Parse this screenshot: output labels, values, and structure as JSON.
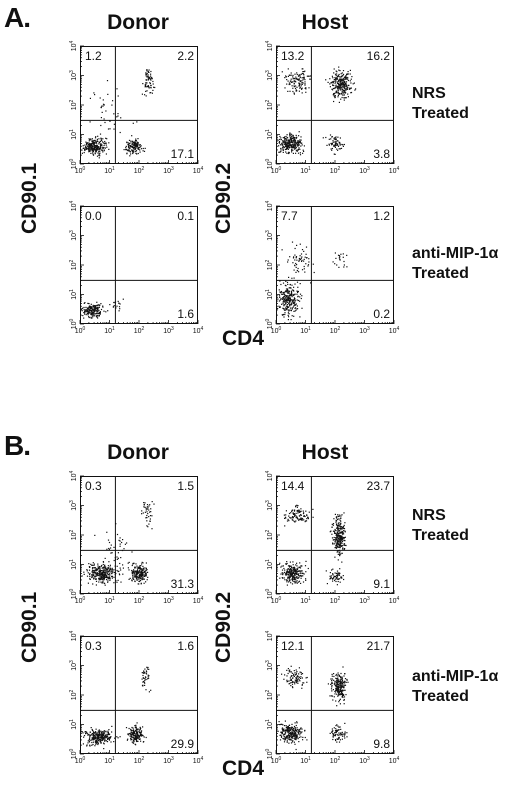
{
  "panels": [
    {
      "label": "A.",
      "col_headers": [
        "Donor",
        "Host"
      ],
      "row_labels": [
        {
          "line1": "NRS",
          "line2": "Treated"
        },
        {
          "line1": "anti-MIP-1α",
          "line2": "Treated"
        }
      ],
      "y_labels": [
        "CD90.1",
        "CD90.2"
      ],
      "x_label": "CD4"
    },
    {
      "label": "B.",
      "col_headers": [
        "Donor",
        "Host"
      ],
      "row_labels": [
        {
          "line1": "NRS",
          "line2": "Treated"
        },
        {
          "line1": "anti-MIP-1α",
          "line2": "Treated"
        }
      ],
      "y_labels": [
        "CD90.1",
        "CD90.2"
      ],
      "x_label": "CD4"
    }
  ],
  "chart_data": [
    {
      "type": "scatter",
      "panel": "A",
      "population": "Donor",
      "treatment": "NRS Treated",
      "xlabel": "CD4",
      "ylabel": "CD90.1",
      "xscale": "log",
      "yscale": "log",
      "xlim": [
        1,
        10000
      ],
      "ylim": [
        1,
        10000
      ],
      "quadrants": {
        "upper_left": "1.2",
        "upper_right": "2.2",
        "lower_right": "17.1"
      }
    },
    {
      "type": "scatter",
      "panel": "A",
      "population": "Host",
      "treatment": "NRS Treated",
      "xlabel": "CD4",
      "ylabel": "CD90.2",
      "xscale": "log",
      "yscale": "log",
      "xlim": [
        1,
        10000
      ],
      "ylim": [
        1,
        10000
      ],
      "quadrants": {
        "upper_left": "13.2",
        "upper_right": "16.2",
        "lower_right": "3.8"
      }
    },
    {
      "type": "scatter",
      "panel": "A",
      "population": "Donor",
      "treatment": "anti-MIP-1α Treated",
      "xlabel": "CD4",
      "ylabel": "CD90.1",
      "xscale": "log",
      "yscale": "log",
      "xlim": [
        1,
        10000
      ],
      "ylim": [
        1,
        10000
      ],
      "quadrants": {
        "upper_left": "0.0",
        "upper_right": "0.1",
        "lower_right": "1.6"
      }
    },
    {
      "type": "scatter",
      "panel": "A",
      "population": "Host",
      "treatment": "anti-MIP-1α Treated",
      "xlabel": "CD4",
      "ylabel": "CD90.2",
      "xscale": "log",
      "yscale": "log",
      "xlim": [
        1,
        10000
      ],
      "ylim": [
        1,
        10000
      ],
      "quadrants": {
        "upper_left": "7.7",
        "upper_right": "1.2",
        "lower_right": "0.2"
      }
    },
    {
      "type": "scatter",
      "panel": "B",
      "population": "Donor",
      "treatment": "NRS Treated",
      "xlabel": "CD4",
      "ylabel": "CD90.1",
      "xscale": "log",
      "yscale": "log",
      "xlim": [
        1,
        10000
      ],
      "ylim": [
        1,
        10000
      ],
      "quadrants": {
        "upper_left": "0.3",
        "upper_right": "1.5",
        "lower_right": "31.3"
      }
    },
    {
      "type": "scatter",
      "panel": "B",
      "population": "Host",
      "treatment": "NRS Treated",
      "xlabel": "CD4",
      "ylabel": "CD90.2",
      "xscale": "log",
      "yscale": "log",
      "xlim": [
        1,
        10000
      ],
      "ylim": [
        1,
        10000
      ],
      "quadrants": {
        "upper_left": "14.4",
        "upper_right": "23.7",
        "lower_right": "9.1"
      }
    },
    {
      "type": "scatter",
      "panel": "B",
      "population": "Donor",
      "treatment": "anti-MIP-1α Treated",
      "xlabel": "CD4",
      "ylabel": "CD90.1",
      "xscale": "log",
      "yscale": "log",
      "xlim": [
        1,
        10000
      ],
      "ylim": [
        1,
        10000
      ],
      "quadrants": {
        "upper_left": "0.3",
        "upper_right": "1.6",
        "lower_right": "29.9"
      }
    },
    {
      "type": "scatter",
      "panel": "B",
      "population": "Host",
      "treatment": "anti-MIP-1α Treated",
      "xlabel": "CD4",
      "ylabel": "CD90.2",
      "xscale": "log",
      "yscale": "log",
      "xlim": [
        1,
        10000
      ],
      "ylim": [
        1,
        10000
      ],
      "quadrants": {
        "upper_left": "12.1",
        "upper_right": "21.7",
        "lower_right": "9.8"
      }
    }
  ]
}
